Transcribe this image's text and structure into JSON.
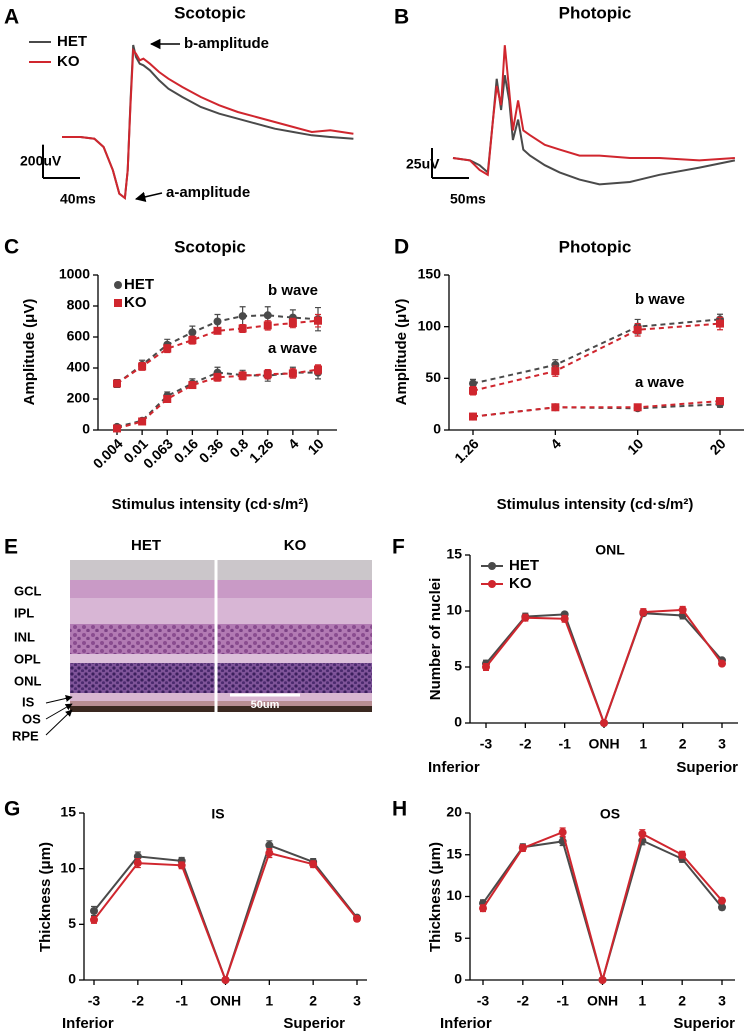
{
  "chart_data": [
    {
      "panel": "A",
      "type": "line",
      "title": "Scotopic",
      "x": [
        0,
        20,
        35,
        45,
        55,
        62,
        68,
        71,
        74,
        77,
        80,
        84,
        88,
        95,
        105,
        115,
        130,
        150,
        170,
        190,
        210,
        230,
        250,
        270,
        290,
        315
      ],
      "series": [
        {
          "name": "HET",
          "color": "#4a4a4a",
          "values": [
            0,
            0,
            -10,
            -60,
            -200,
            -340,
            -366,
            -200,
            200,
            552,
            480,
            440,
            430,
            400,
            340,
            290,
            240,
            180,
            140,
            110,
            80,
            50,
            30,
            10,
            0,
            -10
          ]
        },
        {
          "name": "KO",
          "color": "#d0262e",
          "values": [
            0,
            0,
            -10,
            -60,
            -200,
            -340,
            -366,
            -200,
            180,
            520,
            500,
            460,
            470,
            440,
            390,
            350,
            300,
            240,
            190,
            150,
            120,
            90,
            60,
            30,
            40,
            20
          ]
        }
      ],
      "scale_bars": [
        {
          "axis": "y",
          "value": 200,
          "label": "200uV"
        },
        {
          "axis": "x",
          "value": 40,
          "label": "40ms"
        }
      ],
      "annotations": [
        "b-amplitude",
        "a-amplitude"
      ],
      "legend": "upper left"
    },
    {
      "panel": "B",
      "type": "line",
      "title": "Photopic",
      "x": [
        0,
        23,
        36,
        47,
        54,
        59,
        65,
        70,
        76,
        81,
        88,
        95,
        104,
        124,
        144,
        171,
        198,
        239,
        279,
        333,
        381
      ],
      "series": [
        {
          "name": "HET",
          "color": "#4a4a4a",
          "values": [
            0,
            -2,
            -6,
            -12,
            32,
            66,
            40,
            69,
            48,
            15,
            32,
            7,
            2,
            -6,
            -12,
            -18,
            -22,
            -20,
            -14,
            -8,
            -2
          ]
        },
        {
          "name": "KO",
          "color": "#d0262e",
          "values": [
            0,
            -2,
            -10,
            -14,
            32,
            60,
            44,
            94,
            56,
            23,
            48,
            23,
            19,
            11,
            7,
            2,
            2,
            0,
            0,
            -2,
            0
          ]
        }
      ],
      "scale_bars": [
        {
          "axis": "y",
          "value": 25,
          "label": "25uV"
        },
        {
          "axis": "x",
          "value": 50,
          "label": "50ms"
        }
      ]
    },
    {
      "panel": "C",
      "type": "line",
      "title": "Scotopic",
      "categories": [
        "0.004",
        "0.01",
        "0.063",
        "0.16",
        "0.36",
        "0.8",
        "1.26",
        "4",
        "10"
      ],
      "xlabel": "Stimulus intensity (cd·s/m²)",
      "ylabel": "Amplitude (μV)",
      "ylim": [
        0,
        1000
      ],
      "yticks": [
        0,
        200,
        400,
        600,
        800,
        1000
      ],
      "series": [
        {
          "name": "HET",
          "color": "#4a4a4a",
          "marker": "circle",
          "linestyle": "dashed",
          "curves": [
            {
              "values": [
                300,
                420,
                550,
                630,
                700,
                735,
                740,
                725,
                715
              ],
              "errors": [
                25,
                30,
                35,
                40,
                45,
                60,
                55,
                50,
                75
              ]
            },
            {
              "values": [
                20,
                60,
                220,
                300,
                370,
                355,
                350,
                370,
                370
              ],
              "errors": [
                10,
                10,
                25,
                30,
                35,
                30,
                35,
                35,
                40
              ]
            }
          ]
        },
        {
          "name": "KO",
          "color": "#d0262e",
          "marker": "square",
          "linestyle": "dashed",
          "curves": [
            {
              "values": [
                300,
                410,
                525,
                580,
                640,
                655,
                675,
                690,
                705
              ],
              "errors": [
                20,
                25,
                25,
                25,
                20,
                25,
                30,
                30,
                40
              ]
            },
            {
              "values": [
                10,
                55,
                200,
                290,
                340,
                350,
                360,
                365,
                390
              ],
              "errors": [
                8,
                10,
                20,
                20,
                25,
                25,
                30,
                30,
                30
              ]
            }
          ]
        }
      ],
      "annotations": [
        "b wave",
        "a wave"
      ],
      "legend": "upper left"
    },
    {
      "panel": "D",
      "type": "line",
      "title": "Photopic",
      "categories": [
        "1.26",
        "4",
        "10",
        "20"
      ],
      "xlabel": "Stimulus intensity (cd·s/m²)",
      "ylabel": "Amplitude (μV)",
      "ylim": [
        0,
        150
      ],
      "yticks": [
        0,
        50,
        100,
        150
      ],
      "series": [
        {
          "name": "HET",
          "color": "#4a4a4a",
          "marker": "circle",
          "linestyle": "dashed",
          "curves": [
            {
              "values": [
                45,
                63,
                100,
                107
              ],
              "errors": [
                4,
                5,
                7,
                5
              ]
            },
            {
              "values": [
                13,
                22,
                21,
                25
              ],
              "errors": [
                2,
                2,
                2,
                3
              ]
            }
          ]
        },
        {
          "name": "KO",
          "color": "#d0262e",
          "marker": "square",
          "linestyle": "dashed",
          "curves": [
            {
              "values": [
                38,
                57,
                97,
                103
              ],
              "errors": [
                4,
                5,
                6,
                6
              ]
            },
            {
              "values": [
                13,
                22,
                22,
                28
              ],
              "errors": [
                2,
                2,
                2,
                3
              ]
            }
          ]
        }
      ],
      "annotations": [
        "b wave",
        "a wave"
      ]
    },
    {
      "panel": "F",
      "type": "line",
      "title": "ONL",
      "categories": [
        "-3",
        "-2",
        "-1",
        "ONH",
        "1",
        "2",
        "3"
      ],
      "ylabel": "Number of nuclei",
      "ylim": [
        0,
        15
      ],
      "yticks": [
        0,
        5,
        10,
        15
      ],
      "series": [
        {
          "name": "HET",
          "color": "#4a4a4a",
          "marker": "circle",
          "values": [
            5.3,
            9.5,
            9.7,
            0,
            9.8,
            9.6,
            5.6
          ],
          "errors": [
            0.3,
            0.3,
            0.2,
            null,
            0.2,
            0.3,
            0.2
          ]
        },
        {
          "name": "KO",
          "color": "#d0262e",
          "marker": "circle",
          "values": [
            5.0,
            9.4,
            9.3,
            0,
            9.9,
            10.1,
            5.3
          ],
          "errors": [
            0.3,
            0.3,
            0.3,
            null,
            0.3,
            0.3,
            0.2
          ]
        }
      ],
      "annotations": [
        "Inferior",
        "Superior"
      ],
      "legend": "upper left"
    },
    {
      "panel": "G",
      "type": "line",
      "title": "IS",
      "categories": [
        "-3",
        "-2",
        "-1",
        "ONH",
        "1",
        "2",
        "3"
      ],
      "ylabel": "Thickness (μm)",
      "ylim": [
        0,
        15
      ],
      "yticks": [
        0,
        5,
        10,
        15
      ],
      "series": [
        {
          "name": "HET",
          "color": "#4a4a4a",
          "marker": "circle",
          "values": [
            6.2,
            11.1,
            10.7,
            0,
            12.1,
            10.6,
            5.6
          ],
          "errors": [
            0.4,
            0.4,
            0.3,
            null,
            0.4,
            0.3,
            0.2
          ]
        },
        {
          "name": "KO",
          "color": "#d0262e",
          "marker": "circle",
          "values": [
            5.4,
            10.5,
            10.3,
            0,
            11.4,
            10.4,
            5.5
          ],
          "errors": [
            0.3,
            0.4,
            0.3,
            null,
            0.4,
            0.3,
            0.2
          ]
        }
      ],
      "annotations": [
        "Inferior",
        "Superior"
      ]
    },
    {
      "panel": "H",
      "type": "line",
      "title": "OS",
      "categories": [
        "-3",
        "-2",
        "-1",
        "ONH",
        "1",
        "2",
        "3"
      ],
      "ylabel": "Thickness (μm)",
      "ylim": [
        0,
        20
      ],
      "yticks": [
        0,
        5,
        10,
        15,
        20
      ],
      "series": [
        {
          "name": "HET",
          "color": "#4a4a4a",
          "marker": "circle",
          "values": [
            9.2,
            15.9,
            16.6,
            0,
            16.7,
            14.5,
            8.7
          ],
          "errors": [
            0.4,
            0.4,
            0.5,
            null,
            0.5,
            0.4,
            0.3
          ]
        },
        {
          "name": "KO",
          "color": "#d0262e",
          "marker": "circle",
          "values": [
            8.6,
            15.8,
            17.7,
            0,
            17.5,
            15.0,
            9.5
          ],
          "errors": [
            0.4,
            0.4,
            0.5,
            null,
            0.5,
            0.4,
            0.3
          ]
        }
      ],
      "annotations": [
        "Inferior",
        "Superior"
      ]
    }
  ],
  "histology": {
    "panel": "E",
    "columns": [
      "HET",
      "KO"
    ],
    "layers": [
      "GCL",
      "IPL",
      "INL",
      "OPL",
      "ONL",
      "IS",
      "OS",
      "RPE"
    ],
    "scale_bar": "50um"
  }
}
